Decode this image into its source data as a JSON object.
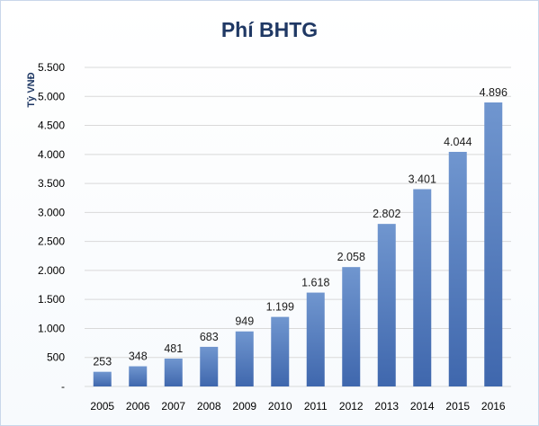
{
  "chart_data": {
    "type": "bar",
    "title": "Phí BHTG",
    "ylabel": "Tỷ VNĐ",
    "xlabel": "",
    "categories": [
      "2005",
      "2006",
      "2007",
      "2008",
      "2009",
      "2010",
      "2011",
      "2012",
      "2013",
      "2014",
      "2015",
      "2016"
    ],
    "values": [
      253,
      348,
      481,
      683,
      949,
      1199,
      1618,
      2058,
      2802,
      3401,
      4044,
      4896
    ],
    "value_labels": [
      "253",
      "348",
      "481",
      "683",
      "949",
      "1.199",
      "1.618",
      "2.058",
      "2.802",
      "3.401",
      "4.044",
      "4.896"
    ],
    "ylim": [
      0,
      5500
    ],
    "y_ticks": [
      0,
      500,
      1000,
      1500,
      2000,
      2500,
      3000,
      3500,
      4000,
      4500,
      5000,
      5500
    ],
    "y_tick_labels": [
      "-",
      "500",
      "1.000",
      "1.500",
      "2.000",
      "2.500",
      "3.000",
      "3.500",
      "4.000",
      "4.500",
      "5.000",
      "5.500"
    ],
    "grid": true,
    "legend": "none",
    "colors": {
      "bar_top": "#7096cf",
      "bar_bottom": "#3f67ad",
      "grid": "#d9d9d9",
      "title": "#1f3864"
    }
  }
}
